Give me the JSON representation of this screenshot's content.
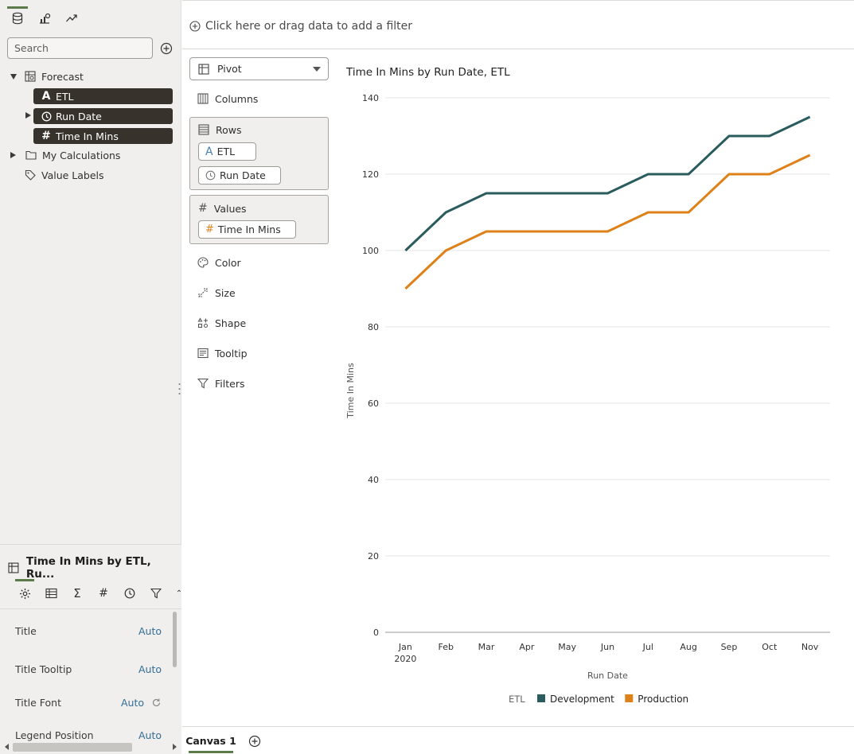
{
  "left_panel": {
    "search_placeholder": "Search",
    "tree": {
      "dataset": "Forecast",
      "columns": [
        {
          "label": "ETL",
          "type": "attribute"
        },
        {
          "label": "Run Date",
          "type": "date"
        },
        {
          "label": "Time In Mins",
          "type": "measure"
        }
      ],
      "my_calculations": "My Calculations",
      "value_labels": "Value Labels"
    }
  },
  "properties": {
    "title": "Time In Mins by ETL, Ru...",
    "rows": [
      {
        "label": "Title",
        "value": "Auto"
      },
      {
        "label": "Title Tooltip",
        "value": "Auto"
      },
      {
        "label": "Title Font",
        "value": "Auto"
      },
      {
        "label": "Legend Position",
        "value": "Auto"
      }
    ]
  },
  "filter_bar": {
    "prompt": "Click here or drag data to add a filter"
  },
  "grammar": {
    "viz_type": "Pivot",
    "columns_label": "Columns",
    "rows_label": "Rows",
    "rows_items": [
      "ETL",
      "Run Date"
    ],
    "values_label": "Values",
    "values_items": [
      "Time In Mins"
    ],
    "color_label": "Color",
    "size_label": "Size",
    "shape_label": "Shape",
    "tooltip_label": "Tooltip",
    "filters_label": "Filters"
  },
  "chart_data": {
    "type": "line",
    "title": "Time In Mins by Run Date, ETL",
    "xlabel": "Run Date",
    "ylabel": "Time In Mins",
    "categories": [
      "Jan",
      "Feb",
      "Mar",
      "Apr",
      "May",
      "Jun",
      "Jul",
      "Aug",
      "Sep",
      "Oct",
      "Nov"
    ],
    "year_label": "2020",
    "ylim": [
      0,
      140
    ],
    "yticks": [
      0,
      20,
      40,
      60,
      80,
      100,
      120,
      140
    ],
    "grid": true,
    "legend_title": "ETL",
    "legend_position": "bottom",
    "series": [
      {
        "name": "Development",
        "color": "#2a5c5e",
        "values": [
          100,
          110,
          115,
          115,
          115,
          115,
          120,
          120,
          130,
          130,
          135
        ]
      },
      {
        "name": "Production",
        "color": "#dd8118",
        "values": [
          90,
          100,
          105,
          105,
          105,
          105,
          110,
          110,
          120,
          120,
          125
        ]
      }
    ]
  },
  "canvas": {
    "tab_label": "Canvas 1"
  }
}
